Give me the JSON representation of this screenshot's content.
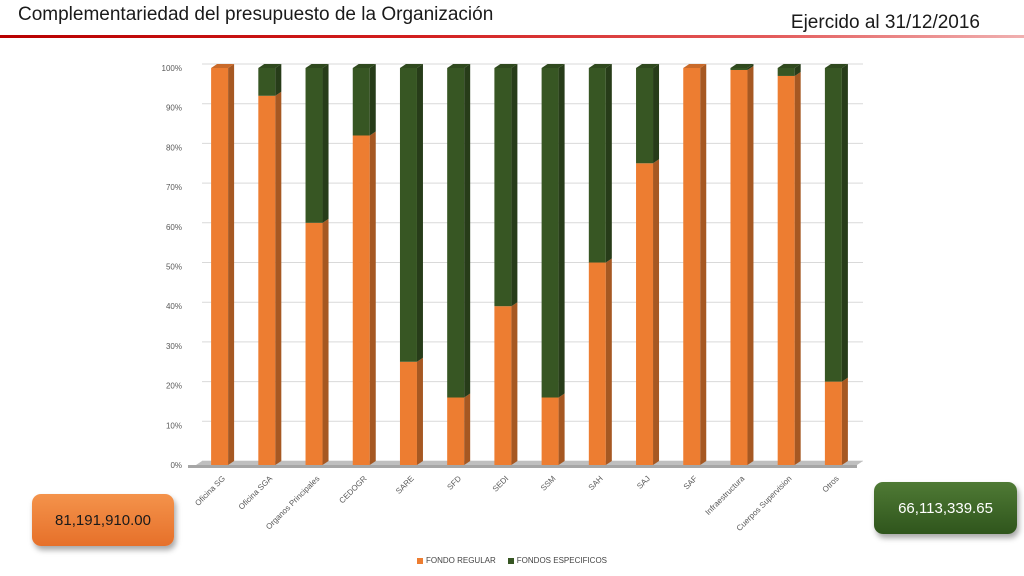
{
  "header": {
    "title": "Complementariedad del presupuesto de la Organización",
    "date": "Ejercido al 31/12/2016"
  },
  "totals": {
    "fondo_regular": "81,191,910.00",
    "fondos_especificos": "66,113,339.65"
  },
  "colors": {
    "regular": "#ED7D31",
    "especificos": "#375623",
    "accent": "#C00000"
  },
  "chart_data": {
    "type": "bar",
    "stacked": true,
    "percent": true,
    "categories": [
      "Oficina SG",
      "Oficina SGA",
      "Organos Principales",
      "CEDOGR",
      "SARE",
      "SFD",
      "SEDI",
      "SSM",
      "SAH",
      "SAJ",
      "SAF",
      "Infraestructura",
      "Cuerpos Supervision",
      "Otros"
    ],
    "series": [
      {
        "name": "FONDO REGULAR",
        "values": [
          100,
          93,
          61,
          83,
          26,
          17,
          40,
          17,
          51,
          76,
          100,
          99.5,
          98,
          21
        ]
      },
      {
        "name": "FONDOS ESPECIFICOS",
        "values": [
          0,
          7,
          39,
          17,
          74,
          83,
          60,
          83,
          49,
          24,
          0,
          0.5,
          2,
          79
        ]
      }
    ],
    "yticks": [
      "0%",
      "10%",
      "20%",
      "30%",
      "40%",
      "50%",
      "60%",
      "70%",
      "80%",
      "90%",
      "100%"
    ],
    "ylim": [
      0,
      100
    ],
    "grid": true,
    "legend": "bottom"
  }
}
